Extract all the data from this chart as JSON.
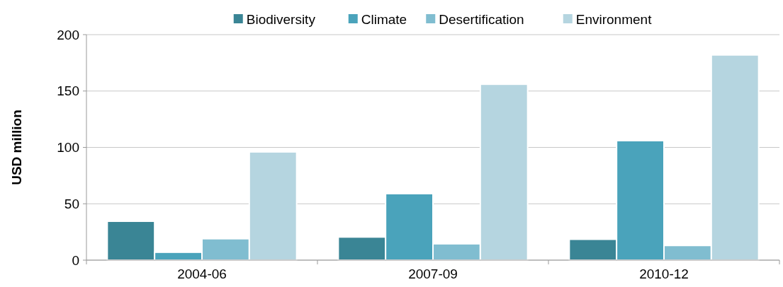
{
  "chart_data": {
    "type": "bar",
    "ylabel": "USD million",
    "categories": [
      "2004-06",
      "2007-09",
      "2010-12"
    ],
    "series": [
      {
        "name": "Biodiversity",
        "color": "#3a8595",
        "values": [
          34.5,
          20.5,
          18.5
        ]
      },
      {
        "name": "Climate",
        "color": "#4aa3bb",
        "values": [
          7,
          59,
          106
        ]
      },
      {
        "name": "Desertification",
        "color": "#80bdd0",
        "values": [
          19,
          14.5,
          13
        ]
      },
      {
        "name": "Environment",
        "color": "#b5d5e0",
        "values": [
          96,
          156,
          182
        ]
      }
    ],
    "ylim": [
      0,
      200
    ],
    "yticks": [
      0,
      50,
      100,
      150,
      200
    ],
    "grid": "y",
    "legend": "top"
  }
}
